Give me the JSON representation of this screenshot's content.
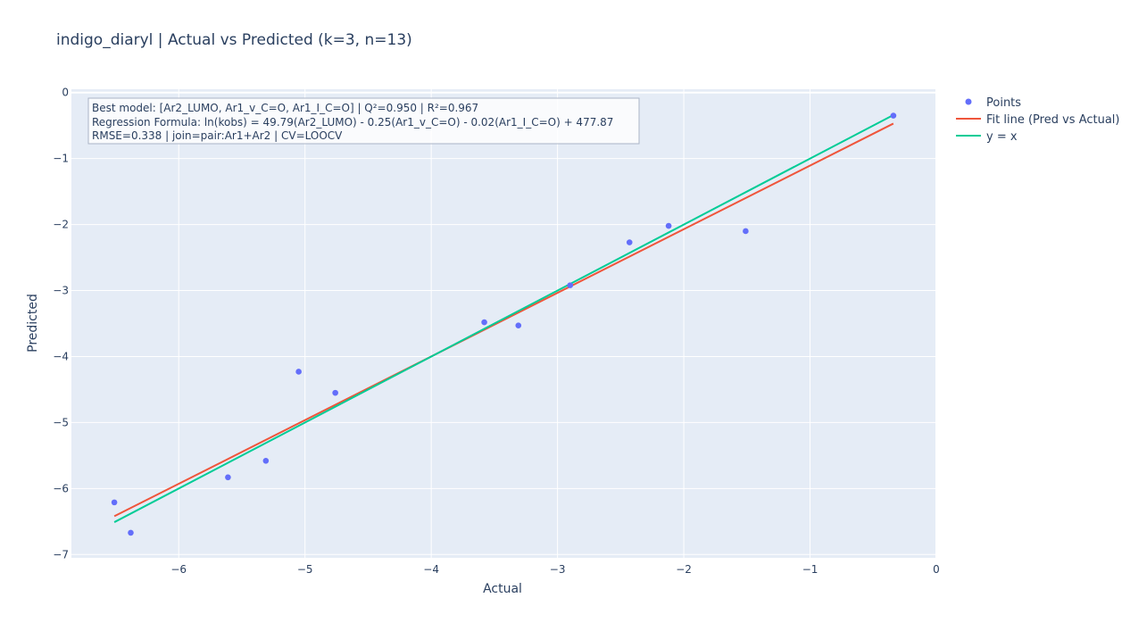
{
  "chart_data": {
    "type": "scatter",
    "title": "indigo_diaryl | Actual vs Predicted (k=3, n=13)",
    "xlabel": "Actual",
    "ylabel": "Predicted",
    "xlim": [
      -6.85,
      0.0
    ],
    "ylim": [
      -7.05,
      0.05
    ],
    "x_ticks": [
      -6,
      -5,
      -4,
      -3,
      -2,
      -1,
      0
    ],
    "y_ticks": [
      0,
      -1,
      -2,
      -3,
      -4,
      -5,
      -6,
      -7
    ],
    "x_tick_labels": [
      "−6",
      "−5",
      "−4",
      "−3",
      "−2",
      "−1",
      "0"
    ],
    "y_tick_labels": [
      "0",
      "−1",
      "−2",
      "−3",
      "−4",
      "−5",
      "−6",
      "−7"
    ],
    "grid": true,
    "legend_position": "top-right",
    "annotation_lines": [
      "Best model: [Ar2_LUMO, Ar1_v_C=O, Ar1_I_C=O] | Q²=0.950 | R²=0.967",
      "Regression Formula: ln(kobs) = 49.79(Ar2_LUMO) - 0.25(Ar1_v_C=O) - 0.02(Ar1_I_C=O) + 477.87",
      "RMSE=0.338 | join=pair:Ar1+Ar2 | CV=LOOCV"
    ],
    "series": [
      {
        "name": "Points",
        "kind": "markers",
        "color": "#636efa",
        "x": [
          -6.51,
          -6.38,
          -5.61,
          -5.31,
          -5.05,
          -4.76,
          -3.58,
          -3.31,
          -2.9,
          -2.43,
          -2.12,
          -1.51,
          -0.34
        ],
        "y": [
          -6.21,
          -6.67,
          -5.83,
          -5.58,
          -4.23,
          -4.55,
          -3.48,
          -3.53,
          -2.92,
          -2.27,
          -2.02,
          -2.1,
          -0.35
        ]
      },
      {
        "name": "Fit line (Pred vs Actual)",
        "kind": "line",
        "color": "#EF553B",
        "x": [
          -6.51,
          -0.34
        ],
        "y": [
          -6.42,
          -0.47
        ]
      },
      {
        "name": "y = x",
        "kind": "line",
        "color": "#00cc96",
        "x": [
          -6.51,
          -0.34
        ],
        "y": [
          -6.51,
          -0.34
        ]
      }
    ]
  }
}
